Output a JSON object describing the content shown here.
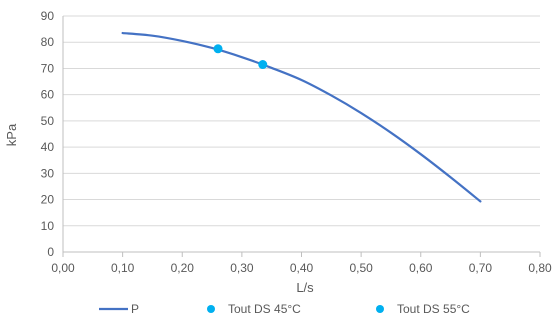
{
  "chart_data": {
    "type": "line",
    "xlabel": "L/s",
    "ylabel": "kPa",
    "xlim": [
      0,
      0.8
    ],
    "ylim": [
      0,
      90
    ],
    "x_ticks": [
      "0,00",
      "0,10",
      "0,20",
      "0,30",
      "0,40",
      "0,50",
      "0,60",
      "0,70",
      "0,80"
    ],
    "y_ticks": [
      "0",
      "10",
      "20",
      "30",
      "40",
      "50",
      "60",
      "70",
      "80",
      "90"
    ],
    "grid": "horizontal",
    "legend": "bottom",
    "series": [
      {
        "name": "P",
        "kind": "line",
        "color": "#4472C4",
        "x": [
          0.1,
          0.15,
          0.2,
          0.25,
          0.3,
          0.35,
          0.4,
          0.45,
          0.5,
          0.55,
          0.6,
          0.65,
          0.7
        ],
        "y": [
          83.5,
          82.5,
          80.5,
          77.8,
          74.3,
          70.2,
          65.6,
          59.7,
          53.0,
          45.5,
          37.3,
          28.5,
          19.3
        ]
      },
      {
        "name": "Tout DS 45°C",
        "kind": "scatter",
        "color": "#00B0F0",
        "x": [
          0.26
        ],
        "y": [
          77.5
        ]
      },
      {
        "name": "Tout DS 55°C",
        "kind": "scatter",
        "color": "#00B0F0",
        "x": [
          0.335
        ],
        "y": [
          71.5
        ]
      }
    ]
  }
}
